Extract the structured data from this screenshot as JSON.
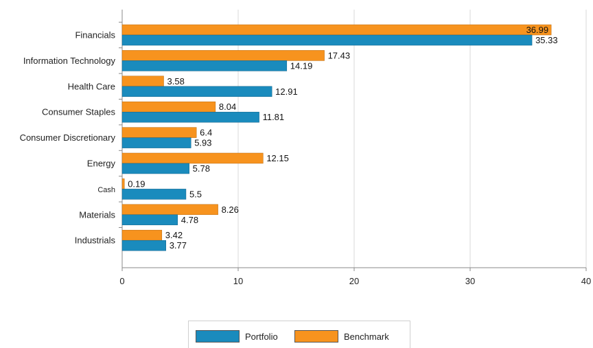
{
  "colors": {
    "portfolio": "#1a8bbd",
    "benchmark": "#f7931e",
    "grid": "#d9d9d9",
    "axis": "#888888"
  },
  "chart_data": {
    "type": "bar",
    "orientation": "horizontal",
    "categories": [
      "Financials",
      "Information Technology",
      "Health Care",
      "Consumer Staples",
      "Consumer Discretionary",
      "Energy",
      "Cash",
      "Materials",
      "Industrials"
    ],
    "series": [
      {
        "name": "Benchmark",
        "values": [
          36.99,
          17.43,
          3.58,
          8.04,
          6.4,
          12.15,
          0.19,
          8.26,
          3.42
        ]
      },
      {
        "name": "Portfolio",
        "values": [
          35.33,
          14.19,
          12.91,
          11.81,
          5.93,
          5.78,
          5.5,
          4.78,
          3.77
        ]
      }
    ],
    "value_labels": {
      "Benchmark": [
        "36.99",
        "17.43",
        "3.58",
        "8.04",
        "6.4",
        "12.15",
        "0.19",
        "8.26",
        "3.42"
      ],
      "Portfolio": [
        "35.33",
        "14.19",
        "12.91",
        "11.81",
        "5.93",
        "5.78",
        "5.5",
        "4.78",
        "3.77"
      ]
    },
    "xlim": [
      0,
      40
    ],
    "xticks": [
      "0",
      "10",
      "20",
      "30",
      "40"
    ],
    "grid": true,
    "legend_position": "bottom"
  },
  "legend": {
    "portfolio_label": "Portfolio",
    "benchmark_label": "Benchmark"
  }
}
